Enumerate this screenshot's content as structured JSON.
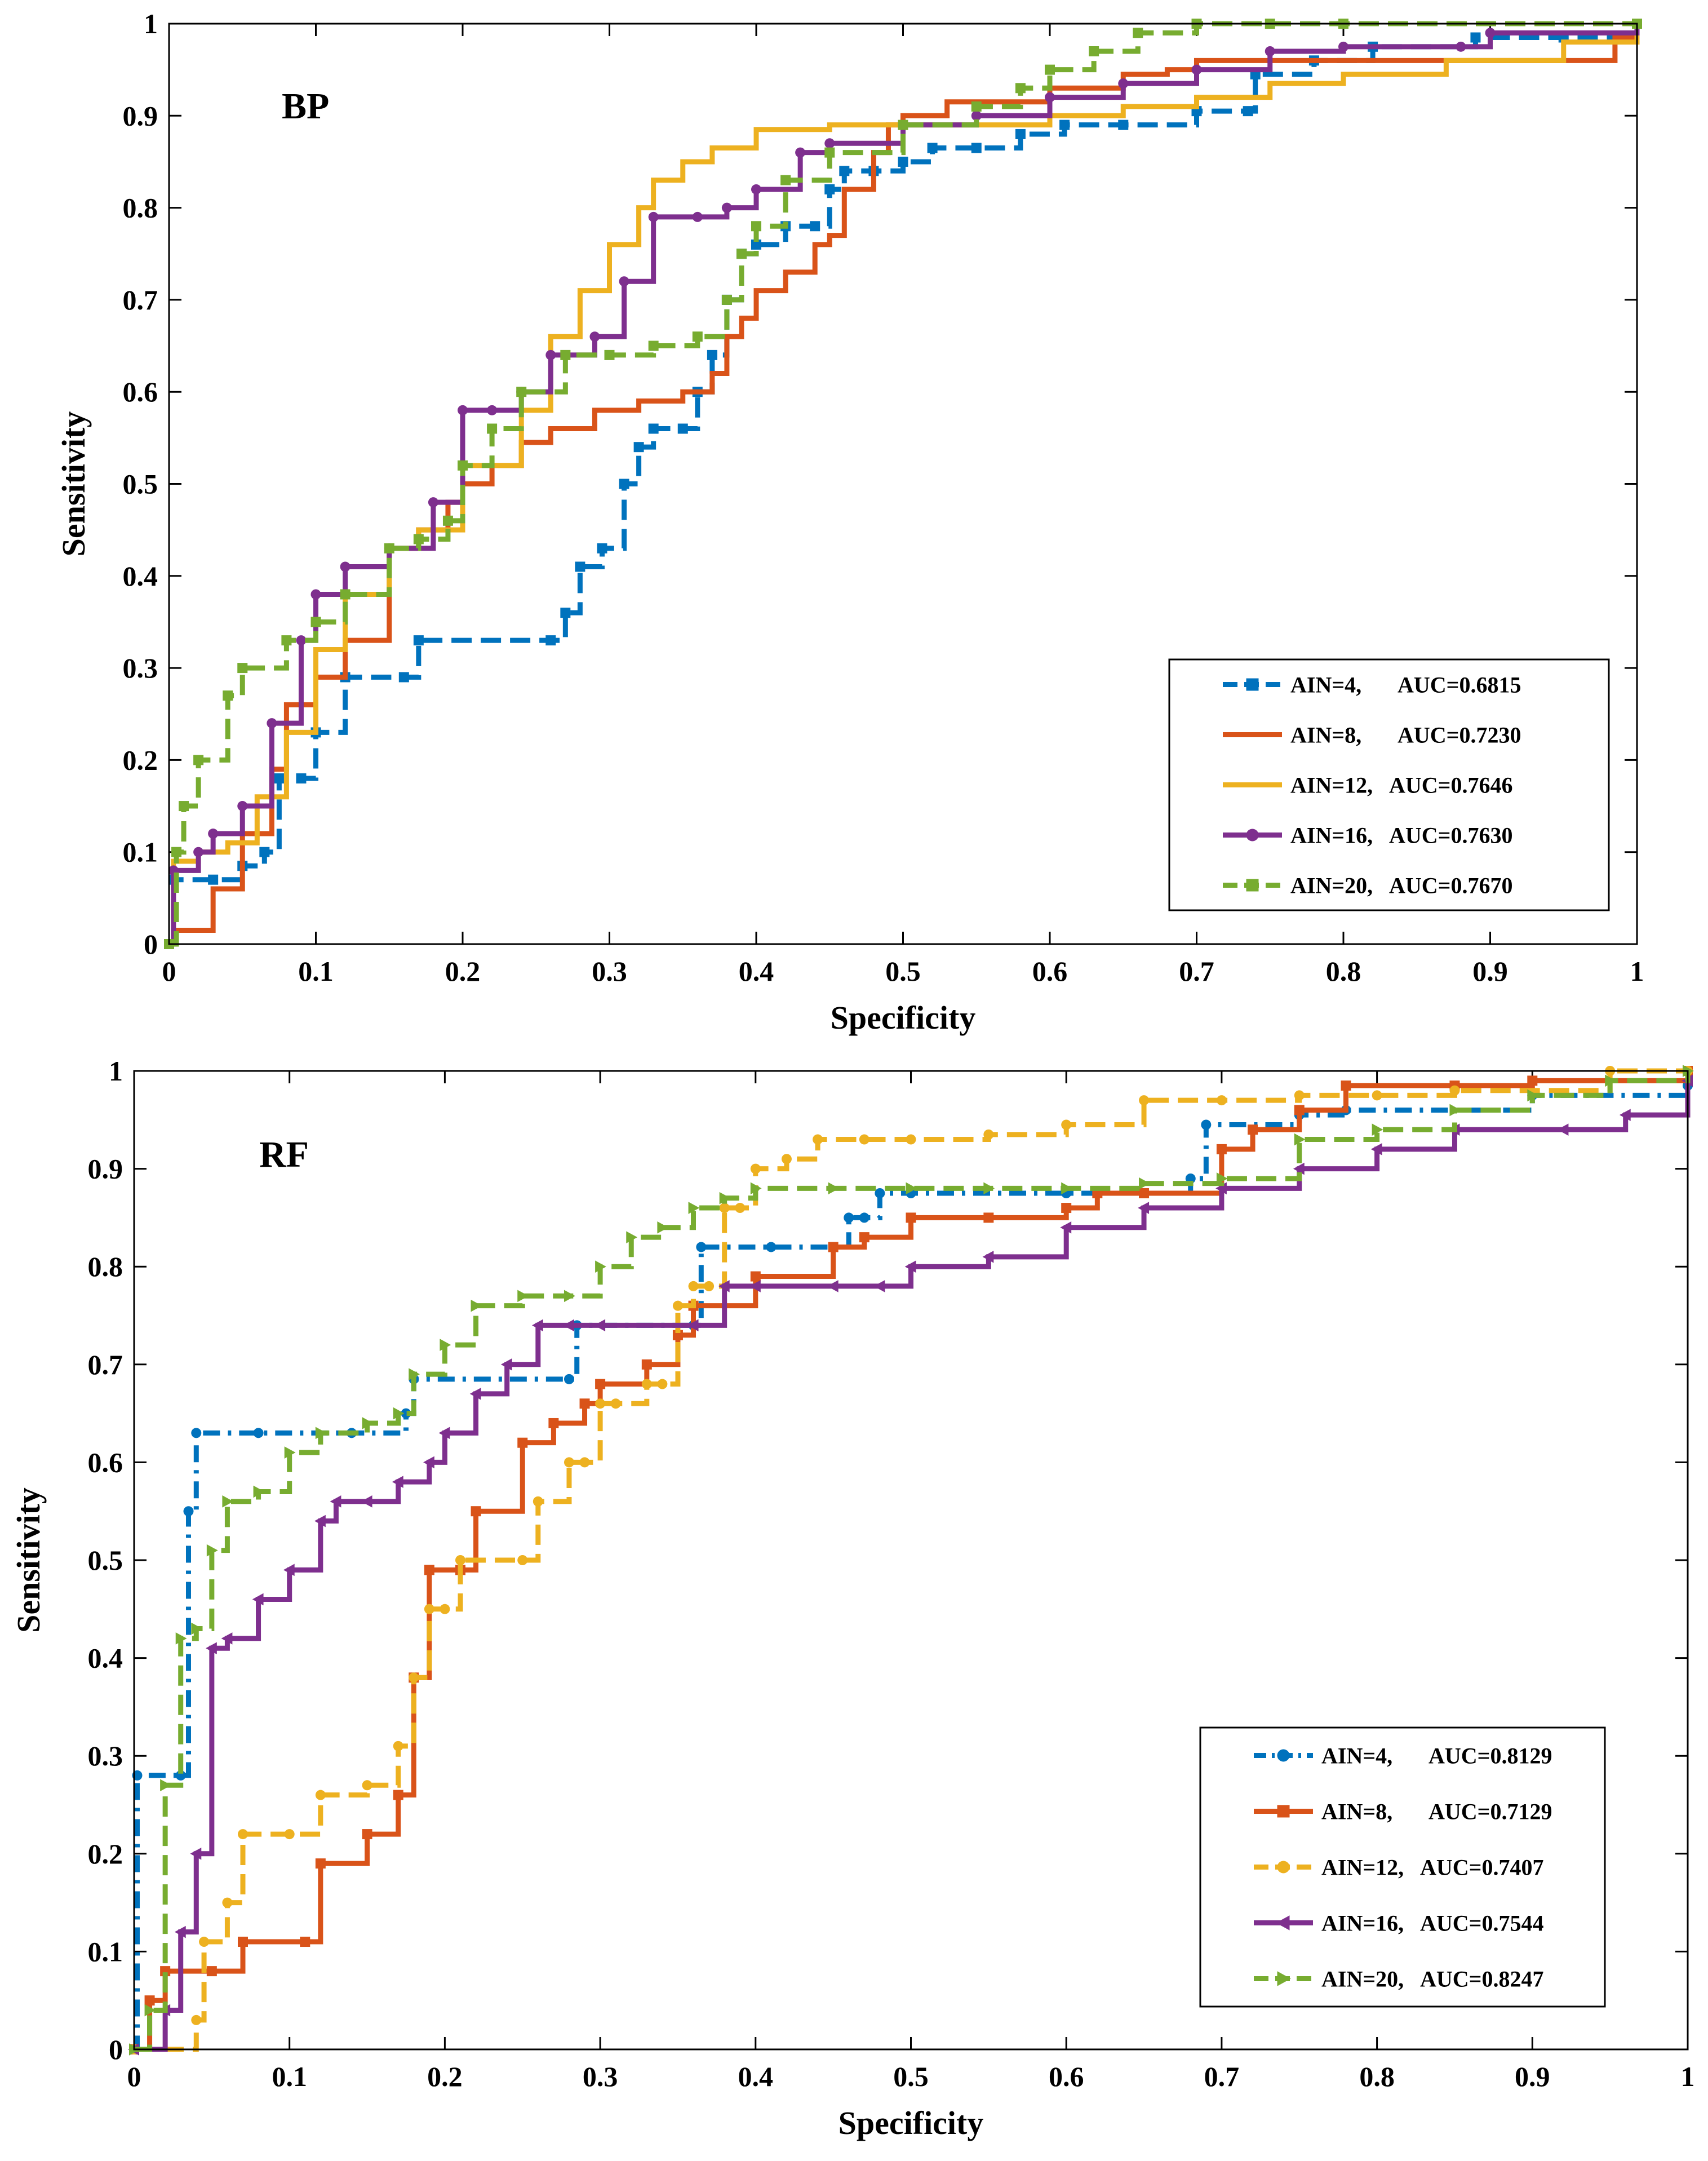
{
  "colors": {
    "ain4": "#0072BD",
    "ain8": "#D95319",
    "ain12": "#EDB120",
    "ain16": "#7E2F8E",
    "ain20": "#77AC30"
  },
  "chart_data": [
    {
      "type": "line",
      "title": "BP",
      "xlabel": "Specificity",
      "ylabel": "Sensitivity",
      "xlim": [
        0,
        1
      ],
      "ylim": [
        0,
        1
      ],
      "xticks": [
        "0",
        "0.1",
        "0.2",
        "0.3",
        "0.4",
        "0.5",
        "0.6",
        "0.7",
        "0.8",
        "0.9",
        "1"
      ],
      "yticks": [
        "0",
        "0.1",
        "0.2",
        "0.3",
        "0.4",
        "0.5",
        "0.6",
        "0.7",
        "0.8",
        "0.9",
        "1"
      ],
      "legend_position": "bottom-right",
      "series": [
        {
          "name": "AIN=4,",
          "auc": "AUC=0.6815",
          "color": "#0072BD",
          "marker": "square",
          "dash": "dashed",
          "x": [
            0,
            0.003,
            0.03,
            0.05,
            0.065,
            0.075,
            0.09,
            0.1,
            0.12,
            0.16,
            0.17,
            0.26,
            0.27,
            0.28,
            0.295,
            0.31,
            0.32,
            0.33,
            0.35,
            0.36,
            0.37,
            0.38,
            0.39,
            0.4,
            0.42,
            0.44,
            0.45,
            0.46,
            0.48,
            0.5,
            0.52,
            0.55,
            0.58,
            0.61,
            0.65,
            0.7,
            0.735,
            0.74,
            0.78,
            0.82,
            0.89,
            0.95,
            1
          ],
          "y": [
            0,
            0.07,
            0.07,
            0.085,
            0.1,
            0.18,
            0.18,
            0.23,
            0.29,
            0.29,
            0.33,
            0.33,
            0.36,
            0.41,
            0.43,
            0.5,
            0.54,
            0.56,
            0.56,
            0.6,
            0.64,
            0.7,
            0.75,
            0.76,
            0.78,
            0.78,
            0.82,
            0.84,
            0.84,
            0.85,
            0.865,
            0.865,
            0.88,
            0.89,
            0.89,
            0.905,
            0.905,
            0.945,
            0.96,
            0.975,
            0.985,
            0.985,
            1
          ]
        },
        {
          "name": "AIN=8,",
          "auc": "AUC=0.7230",
          "color": "#D95319",
          "marker": "none",
          "dash": "solid",
          "x": [
            0,
            0.005,
            0.02,
            0.03,
            0.05,
            0.07,
            0.08,
            0.1,
            0.12,
            0.15,
            0.17,
            0.19,
            0.2,
            0.22,
            0.24,
            0.26,
            0.29,
            0.32,
            0.35,
            0.37,
            0.38,
            0.39,
            0.4,
            0.42,
            0.44,
            0.45,
            0.46,
            0.48,
            0.49,
            0.5,
            0.53,
            0.56,
            0.58,
            0.6,
            0.62,
            0.65,
            0.68,
            0.7,
            0.72,
            0.75,
            0.8,
            0.85,
            0.9,
            0.95,
            0.97,
            0.985,
            1
          ],
          "y": [
            0,
            0.015,
            0.015,
            0.06,
            0.12,
            0.19,
            0.26,
            0.29,
            0.33,
            0.43,
            0.45,
            0.48,
            0.5,
            0.52,
            0.545,
            0.56,
            0.58,
            0.59,
            0.6,
            0.62,
            0.66,
            0.68,
            0.71,
            0.73,
            0.76,
            0.77,
            0.82,
            0.86,
            0.89,
            0.9,
            0.915,
            0.915,
            0.915,
            0.93,
            0.93,
            0.945,
            0.95,
            0.96,
            0.96,
            0.96,
            0.96,
            0.96,
            0.96,
            0.96,
            0.96,
            0.985,
            1
          ]
        },
        {
          "name": "AIN=12,",
          "auc": "AUC=0.7646",
          "color": "#EDB120",
          "marker": "none",
          "dash": "solid",
          "x": [
            0,
            0.003,
            0.02,
            0.04,
            0.06,
            0.08,
            0.1,
            0.12,
            0.15,
            0.17,
            0.2,
            0.22,
            0.24,
            0.26,
            0.28,
            0.3,
            0.32,
            0.33,
            0.35,
            0.37,
            0.4,
            0.45,
            0.5,
            0.55,
            0.6,
            0.65,
            0.7,
            0.75,
            0.8,
            0.87,
            0.95,
            1
          ],
          "y": [
            0,
            0.09,
            0.1,
            0.11,
            0.16,
            0.23,
            0.32,
            0.38,
            0.43,
            0.45,
            0.52,
            0.52,
            0.58,
            0.66,
            0.71,
            0.76,
            0.8,
            0.83,
            0.85,
            0.865,
            0.885,
            0.89,
            0.89,
            0.89,
            0.9,
            0.91,
            0.92,
            0.935,
            0.945,
            0.96,
            0.98,
            1
          ]
        },
        {
          "name": "AIN=16,",
          "auc": "AUC=0.7630",
          "color": "#7E2F8E",
          "marker": "circle",
          "dash": "solid",
          "x": [
            0,
            0.003,
            0.02,
            0.03,
            0.05,
            0.07,
            0.09,
            0.1,
            0.12,
            0.15,
            0.18,
            0.2,
            0.22,
            0.24,
            0.26,
            0.29,
            0.31,
            0.33,
            0.36,
            0.38,
            0.4,
            0.43,
            0.45,
            0.5,
            0.55,
            0.6,
            0.65,
            0.7,
            0.75,
            0.8,
            0.88,
            0.9,
            1
          ],
          "y": [
            0,
            0.08,
            0.1,
            0.12,
            0.15,
            0.24,
            0.33,
            0.38,
            0.41,
            0.43,
            0.48,
            0.58,
            0.58,
            0.6,
            0.64,
            0.66,
            0.72,
            0.79,
            0.79,
            0.8,
            0.82,
            0.86,
            0.87,
            0.89,
            0.9,
            0.92,
            0.935,
            0.95,
            0.97,
            0.975,
            0.975,
            0.99,
            1
          ]
        },
        {
          "name": "AIN=20,",
          "auc": "AUC=0.7670",
          "color": "#77AC30",
          "marker": "square",
          "dash": "dashed",
          "x": [
            0,
            0.005,
            0.01,
            0.02,
            0.04,
            0.05,
            0.08,
            0.1,
            0.12,
            0.15,
            0.17,
            0.19,
            0.2,
            0.22,
            0.24,
            0.27,
            0.3,
            0.33,
            0.36,
            0.38,
            0.39,
            0.4,
            0.42,
            0.45,
            0.5,
            0.55,
            0.58,
            0.6,
            0.63,
            0.66,
            0.7,
            0.75,
            0.8,
            1
          ],
          "y": [
            0,
            0.1,
            0.15,
            0.2,
            0.27,
            0.3,
            0.33,
            0.35,
            0.38,
            0.43,
            0.44,
            0.46,
            0.52,
            0.56,
            0.6,
            0.64,
            0.64,
            0.65,
            0.66,
            0.7,
            0.75,
            0.78,
            0.83,
            0.86,
            0.89,
            0.91,
            0.93,
            0.95,
            0.97,
            0.99,
            1,
            1,
            1,
            1
          ]
        }
      ]
    },
    {
      "type": "line",
      "title": "RF",
      "xlabel": "Specificity",
      "ylabel": "Sensitivity",
      "xlim": [
        0,
        1
      ],
      "ylim": [
        0,
        1
      ],
      "xticks": [
        "0",
        "0.1",
        "0.2",
        "0.3",
        "0.4",
        "0.5",
        "0.6",
        "0.7",
        "0.8",
        "0.9",
        "1"
      ],
      "yticks": [
        "0",
        "0.1",
        "0.2",
        "0.3",
        "0.4",
        "0.5",
        "0.6",
        "0.7",
        "0.8",
        "0.9",
        "1"
      ],
      "legend_position": "bottom-right",
      "series": [
        {
          "name": "AIN=4,",
          "auc": "AUC=0.8129",
          "color": "#0072BD",
          "marker": "circle",
          "dash": "dashdot",
          "x": [
            0,
            0.002,
            0.03,
            0.035,
            0.04,
            0.08,
            0.14,
            0.175,
            0.18,
            0.28,
            0.285,
            0.36,
            0.365,
            0.41,
            0.46,
            0.47,
            0.48,
            0.5,
            0.6,
            0.68,
            0.69,
            0.75,
            0.78,
            0.9,
            1
          ],
          "y": [
            0,
            0.28,
            0.28,
            0.55,
            0.63,
            0.63,
            0.63,
            0.65,
            0.685,
            0.685,
            0.74,
            0.74,
            0.82,
            0.82,
            0.85,
            0.85,
            0.875,
            0.875,
            0.875,
            0.89,
            0.945,
            0.955,
            0.96,
            0.975,
            0.985
          ]
        },
        {
          "name": "AIN=8,",
          "auc": "AUC=0.7129",
          "color": "#D95319",
          "marker": "square",
          "dash": "solid",
          "x": [
            0,
            0.01,
            0.02,
            0.05,
            0.07,
            0.11,
            0.12,
            0.15,
            0.17,
            0.18,
            0.19,
            0.21,
            0.22,
            0.25,
            0.27,
            0.29,
            0.3,
            0.33,
            0.35,
            0.36,
            0.4,
            0.45,
            0.47,
            0.5,
            0.55,
            0.6,
            0.62,
            0.65,
            0.7,
            0.72,
            0.75,
            0.78,
            0.85,
            0.9,
            1
          ],
          "y": [
            0,
            0.05,
            0.08,
            0.08,
            0.11,
            0.11,
            0.19,
            0.22,
            0.26,
            0.38,
            0.49,
            0.49,
            0.55,
            0.62,
            0.64,
            0.66,
            0.68,
            0.7,
            0.73,
            0.76,
            0.79,
            0.82,
            0.83,
            0.85,
            0.85,
            0.86,
            0.875,
            0.875,
            0.92,
            0.94,
            0.96,
            0.985,
            0.985,
            0.99,
            1
          ]
        },
        {
          "name": "AIN=12,",
          "auc": "AUC=0.7407",
          "color": "#EDB120",
          "marker": "circle",
          "dash": "dashed",
          "x": [
            0,
            0.04,
            0.045,
            0.06,
            0.07,
            0.1,
            0.12,
            0.15,
            0.17,
            0.18,
            0.19,
            0.2,
            0.21,
            0.25,
            0.26,
            0.28,
            0.29,
            0.3,
            0.31,
            0.33,
            0.34,
            0.35,
            0.36,
            0.37,
            0.38,
            0.39,
            0.4,
            0.42,
            0.44,
            0.47,
            0.5,
            0.55,
            0.6,
            0.65,
            0.7,
            0.75,
            0.8,
            0.85,
            0.95,
            1
          ],
          "y": [
            0,
            0.03,
            0.11,
            0.15,
            0.22,
            0.22,
            0.26,
            0.27,
            0.31,
            0.38,
            0.45,
            0.45,
            0.5,
            0.5,
            0.56,
            0.6,
            0.6,
            0.66,
            0.66,
            0.68,
            0.68,
            0.76,
            0.78,
            0.78,
            0.86,
            0.86,
            0.9,
            0.91,
            0.93,
            0.93,
            0.93,
            0.935,
            0.945,
            0.97,
            0.97,
            0.975,
            0.975,
            0.98,
            1,
            1
          ]
        },
        {
          "name": "AIN=16,",
          "auc": "AUC=0.7544",
          "color": "#7E2F8E",
          "marker": "triangle-left",
          "dash": "solid",
          "x": [
            0,
            0.02,
            0.03,
            0.04,
            0.05,
            0.06,
            0.08,
            0.1,
            0.12,
            0.13,
            0.15,
            0.17,
            0.19,
            0.2,
            0.22,
            0.24,
            0.26,
            0.28,
            0.3,
            0.36,
            0.38,
            0.4,
            0.45,
            0.48,
            0.5,
            0.55,
            0.6,
            0.65,
            0.7,
            0.75,
            0.8,
            0.85,
            0.92,
            0.96,
            1
          ],
          "y": [
            0,
            0.04,
            0.12,
            0.2,
            0.41,
            0.42,
            0.46,
            0.49,
            0.54,
            0.56,
            0.56,
            0.58,
            0.6,
            0.63,
            0.67,
            0.7,
            0.74,
            0.74,
            0.74,
            0.74,
            0.78,
            0.78,
            0.78,
            0.78,
            0.8,
            0.81,
            0.84,
            0.86,
            0.88,
            0.9,
            0.92,
            0.94,
            0.94,
            0.955,
            0.99
          ]
        },
        {
          "name": "AIN=20,",
          "auc": "AUC=0.8247",
          "color": "#77AC30",
          "marker": "triangle-right",
          "dash": "dashed",
          "x": [
            0,
            0.01,
            0.02,
            0.03,
            0.04,
            0.05,
            0.06,
            0.08,
            0.1,
            0.12,
            0.15,
            0.17,
            0.18,
            0.2,
            0.22,
            0.25,
            0.28,
            0.3,
            0.32,
            0.34,
            0.36,
            0.38,
            0.4,
            0.45,
            0.5,
            0.55,
            0.6,
            0.65,
            0.7,
            0.75,
            0.8,
            0.85,
            0.9,
            0.95,
            1
          ],
          "y": [
            0,
            0.04,
            0.27,
            0.42,
            0.43,
            0.51,
            0.56,
            0.57,
            0.61,
            0.63,
            0.64,
            0.65,
            0.69,
            0.72,
            0.76,
            0.77,
            0.77,
            0.8,
            0.83,
            0.84,
            0.86,
            0.87,
            0.88,
            0.88,
            0.88,
            0.88,
            0.88,
            0.885,
            0.89,
            0.93,
            0.94,
            0.96,
            0.975,
            0.99,
            1
          ]
        }
      ]
    }
  ]
}
